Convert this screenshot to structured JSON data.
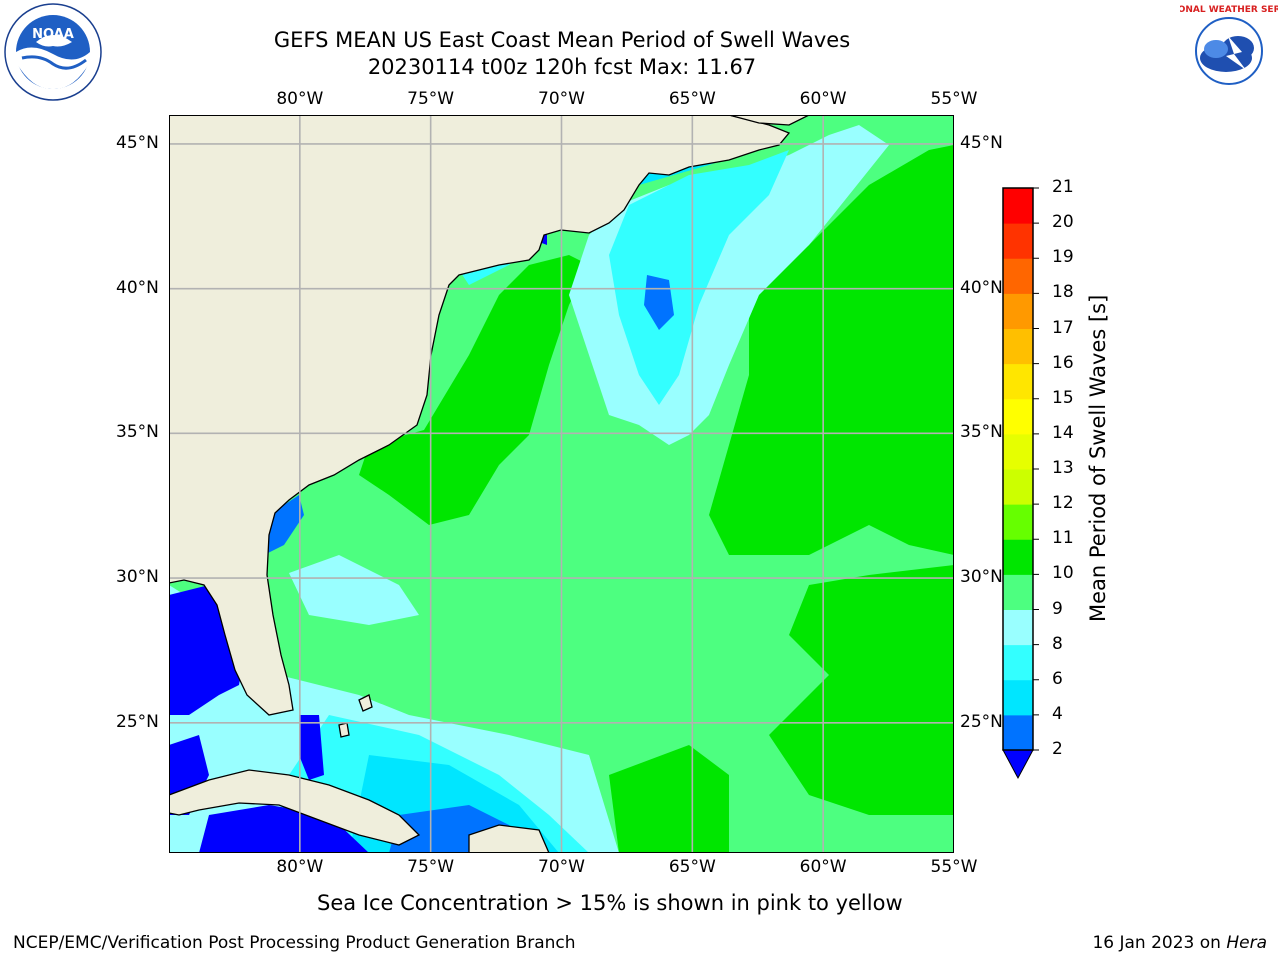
{
  "title": {
    "line1": "GEFS MEAN US East Coast Mean Period of Swell Waves",
    "line2": "20230114 t00z 120h fcst   Max: 11.67"
  },
  "logos": {
    "left": "NOAA",
    "left_ring_text": "NATIONAL OCEANIC AND ATMOSPHERIC ADMINISTRATION · U.S. DEPARTMENT OF COMMERCE",
    "right_ring_text": "NATIONAL WEATHER SERVICE"
  },
  "map": {
    "lon_labels": [
      "80°W",
      "75°W",
      "70°W",
      "65°W",
      "60°W",
      "55°W"
    ],
    "lat_labels": [
      "45°N",
      "40°N",
      "35°N",
      "30°N",
      "25°N"
    ],
    "lon_range": [
      -85,
      -55
    ],
    "lat_range": [
      20.5,
      46
    ]
  },
  "colorbar": {
    "title": "Mean Period of Swell Waves [s]",
    "ticks": [
      "2",
      "4",
      "6",
      "8",
      "9",
      "10",
      "11",
      "12",
      "13",
      "14",
      "15",
      "16",
      "17",
      "18",
      "19",
      "20",
      "21"
    ],
    "colors": [
      "#0000ff",
      "#0066ff",
      "#00ccff",
      "#33ffff",
      "#99ffff",
      "#4dff80",
      "#00e600",
      "#66ff00",
      "#ccff00",
      "#e6ff00",
      "#ffff00",
      "#ffe600",
      "#ffbf00",
      "#ff9900",
      "#ff6600",
      "#ff3300",
      "#ff0000"
    ],
    "colors_note": "lowest triangle extension #0000ff; bins 2-4 #0073ff, 4-6 #00e6ff, 6-8 #33ffff, 8-9 #99ffff, 9-10 #4dff80, 10-11 #00e600, 11-12 #66ff00, 12-13 #ccff00, 13-14 #e6ff00, 14-15 #ffff00, 15-16 #ffe600, 16-17 #ffbf00, 17-18 #ff9900, 18-19 #ff6600, 19-20 #ff3300, 20-21 #ff0000"
  },
  "note": "Sea Ice Concentration > 15% is shown in pink to yellow",
  "footer": {
    "left": "NCEP/EMC/Verification Post Processing Product Generation Branch",
    "right_date": "16 Jan 2023 on ",
    "right_host": "Hera"
  }
}
